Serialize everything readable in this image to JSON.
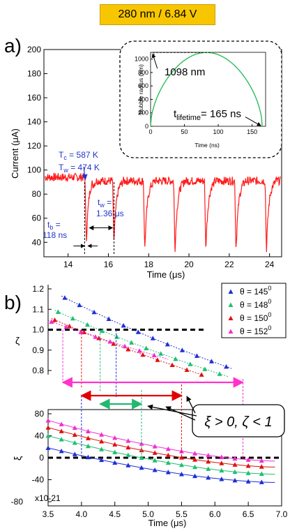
{
  "banner": "280 nm / 6.84 V",
  "panel_a": {
    "label": "a)",
    "annotations": {
      "tc": "T",
      "tc_sub": "c",
      "tc_val": " = 587 K",
      "tw": "T",
      "tw_sub": "w",
      "tw_val": " = 474 K",
      "tb": "t",
      "tb_sub": "b",
      "tb_val": " =",
      "tb_num": "118 ns",
      "tw2": "t",
      "tw2_sub": "w",
      "tw2_val": " =",
      "tw2_num": "1.36 μs"
    }
  },
  "inset": {
    "max_label": "1098 nm",
    "lifetime": "t",
    "lifetime_sub": "lifetime",
    "lifetime_val": "= 165 ns"
  },
  "panel_b": {
    "label": "b)",
    "legend": [
      {
        "text": "θ = 145",
        "sup": "0",
        "color": "#1f2fd6",
        "marker": "triangle"
      },
      {
        "text": "θ = 148",
        "sup": "0",
        "color": "#1fbf73",
        "marker": "triangle"
      },
      {
        "text": "θ = 150",
        "sup": "0",
        "color": "#e01010",
        "marker": "triangle"
      },
      {
        "text": "θ = 152",
        "sup": "0",
        "color": "#ef2fd0",
        "marker": "triangle"
      }
    ],
    "callout": "ξ > 0, ζ < 1"
  },
  "colors": {
    "trace": "#ff1a1a",
    "inset_curve": "#2dbd5a",
    "annot_blue": "#2233cc",
    "arrow_magenta": "#ff33cc",
    "arrow_red": "#e00000",
    "arrow_green": "#22b86e"
  },
  "chart_data": [
    {
      "type": "line",
      "xlabel": "Time (μs)",
      "ylabel": "Current (μA)",
      "xlim": [
        12.8,
        24.6
      ],
      "ylim": [
        28,
        200
      ],
      "xticks": [
        14,
        16,
        18,
        20,
        22,
        24
      ],
      "yticks": [
        40,
        60,
        80,
        100,
        120,
        140,
        160,
        180,
        200
      ],
      "baseline": 91,
      "dip_times": [
        14.9,
        16.27,
        17.8,
        19.3,
        20.83,
        22.33,
        23.84
      ],
      "dip_min": [
        35,
        37,
        30,
        30,
        31,
        30,
        30
      ]
    },
    {
      "type": "line",
      "xlabel": "Time (ns)",
      "ylabel": "Bubble radius (nm)",
      "xlim": [
        0,
        170
      ],
      "ylim": [
        0,
        1100
      ],
      "xticks": [
        0,
        50,
        100,
        150
      ],
      "yticks": [
        0,
        200,
        400,
        600,
        800,
        1000
      ],
      "max_radius": 1098,
      "max_time": 90,
      "lifetime": 165
    },
    {
      "type": "line",
      "xlabel": "",
      "ylabel": "ζ",
      "xlim": [
        3.5,
        7.0
      ],
      "ylim": [
        0.8,
        1.2
      ],
      "yticks": [
        0.8,
        0.9,
        1.0,
        1.1,
        1.2
      ],
      "threshold": 1.0,
      "series": [
        {
          "name": "θ = 145°",
          "x": [
            3.7,
            6.25
          ],
          "y": [
            1.165,
            0.81
          ]
        },
        {
          "name": "θ = 148°",
          "x": [
            3.6,
            6.2
          ],
          "y": [
            1.095,
            0.77
          ]
        },
        {
          "name": "θ = 150°",
          "x": [
            3.55,
            5.8
          ],
          "y": [
            1.055,
            0.78
          ]
        },
        {
          "name": "θ = 152°",
          "x": [
            3.5,
            5.3
          ],
          "y": [
            1.045,
            0.855
          ]
        }
      ],
      "crossings": {
        "θ = 145°": 4.52,
        "θ = 148°": 4.28,
        "θ = 150°": 4.0,
        "θ = 152°": 3.72
      }
    },
    {
      "type": "line",
      "xlabel": "Time (μs)",
      "ylabel": "ξ",
      "xlim": [
        3.5,
        7.0
      ],
      "ylim": [
        -80,
        80
      ],
      "xticks": [
        3.5,
        4.0,
        4.5,
        5.0,
        5.5,
        6.0,
        6.5,
        7.0
      ],
      "yticks": [
        -80,
        -40,
        0,
        40,
        80
      ],
      "ytick_suffix": "x10-21",
      "threshold": 0,
      "series": [
        {
          "name": "θ = 145°",
          "x": [
            3.5,
            6.9
          ],
          "y": [
            18,
            -45
          ]
        },
        {
          "name": "θ = 148°",
          "x": [
            3.5,
            6.9
          ],
          "y": [
            40,
            -30
          ]
        },
        {
          "name": "θ = 150°",
          "x": [
            3.5,
            6.9
          ],
          "y": [
            55,
            -17
          ]
        },
        {
          "name": "θ = 152°",
          "x": [
            3.5,
            6.9
          ],
          "y": [
            68,
            -6
          ]
        }
      ],
      "crossings": {
        "θ = 145°": 4.0,
        "θ = 148°": 4.9,
        "θ = 150°": 5.5,
        "θ = 152°": 6.42
      }
    }
  ]
}
